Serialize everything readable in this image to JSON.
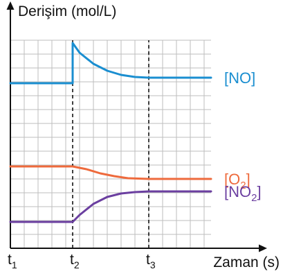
{
  "chart_data": {
    "type": "line",
    "ylabel": "Derişim (mol/L)",
    "xlabel": "Zaman (s)",
    "xticks": [
      {
        "name": "t1",
        "base": "t",
        "sub": "1",
        "x": 0
      },
      {
        "name": "t2",
        "base": "t",
        "sub": "2",
        "x": 4.5
      },
      {
        "name": "t3",
        "base": "t",
        "sub": "3",
        "x": 10
      }
    ],
    "grid": true,
    "xlim": [
      0,
      14.5
    ],
    "ylim": [
      0,
      15
    ],
    "dashed_markers_x": [
      4.5,
      10
    ],
    "series": [
      {
        "name": "NO",
        "label_base": "[NO",
        "label_sub": "",
        "label_close": "]",
        "color": "#1a8ed0",
        "points": [
          [
            0,
            11.9
          ],
          [
            4.5,
            11.9
          ],
          [
            4.5,
            14.8
          ],
          [
            5,
            14.1
          ],
          [
            6,
            13.3
          ],
          [
            7,
            12.8
          ],
          [
            8,
            12.5
          ],
          [
            9,
            12.35
          ],
          [
            10,
            12.3
          ],
          [
            14.5,
            12.3
          ]
        ]
      },
      {
        "name": "O2",
        "label_base": "[O",
        "label_sub": "2",
        "label_close": "]",
        "color": "#ee6a3c",
        "points": [
          [
            0,
            5.9
          ],
          [
            4.5,
            5.9
          ],
          [
            5.5,
            5.7
          ],
          [
            6.5,
            5.4
          ],
          [
            7.5,
            5.2
          ],
          [
            8.5,
            5.05
          ],
          [
            10,
            5.0
          ],
          [
            14.5,
            5.0
          ]
        ]
      },
      {
        "name": "NO2",
        "label_base": "[NO",
        "label_sub": "2",
        "label_close": "]",
        "color": "#6b3fa0",
        "points": [
          [
            0,
            1.9
          ],
          [
            4.5,
            1.9
          ],
          [
            5,
            2.4
          ],
          [
            6,
            3.2
          ],
          [
            7,
            3.7
          ],
          [
            8,
            3.95
          ],
          [
            9,
            4.05
          ],
          [
            10,
            4.1
          ],
          [
            14.5,
            4.1
          ]
        ]
      }
    ]
  }
}
